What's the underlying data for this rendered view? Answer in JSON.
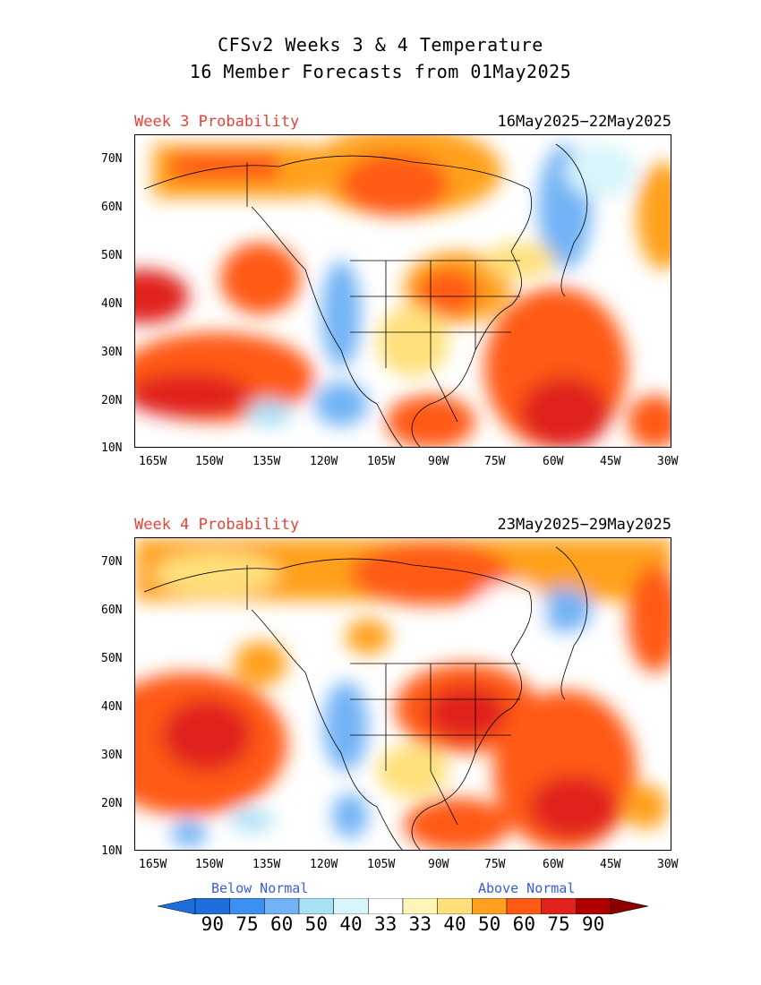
{
  "title": {
    "line1": "CFSv2 Weeks 3 & 4 Temperature",
    "line2": "16 Member Forecasts from 01May2025"
  },
  "panels": [
    {
      "label": "Week 3 Probability",
      "dates": "16May2025−22May2025"
    },
    {
      "label": "Week 4 Probability",
      "dates": "23May2025−29May2025"
    }
  ],
  "lat_labels": [
    "70N",
    "60N",
    "50N",
    "40N",
    "30N",
    "20N",
    "10N"
  ],
  "lon_labels": [
    "165W",
    "150W",
    "135W",
    "120W",
    "105W",
    "90W",
    "75W",
    "60W",
    "45W",
    "30W"
  ],
  "legend": {
    "below": "Below Normal",
    "above": "Above Normal",
    "values": [
      "90",
      "75",
      "60",
      "50",
      "40",
      "33",
      "33",
      "40",
      "50",
      "60",
      "75",
      "90"
    ],
    "colors": [
      "#1e6fdc",
      "#3a8ff0",
      "#72b3f5",
      "#a8e0f5",
      "#d8f5fb",
      "#ffffff",
      "#fff5b8",
      "#ffe07a",
      "#ffa11e",
      "#ff5a14",
      "#e0221a",
      "#b00000"
    ]
  },
  "colors": {
    "c40": "#fff5b8",
    "c50": "#ffe07a",
    "c60": "#ffa11e",
    "c75": "#ff5a14",
    "c90": "#e0221a",
    "c100": "#b00000",
    "b40": "#d8f5fb",
    "b50": "#a8e0f5",
    "b60": "#72b3f5",
    "b75": "#3a8ff0"
  }
}
